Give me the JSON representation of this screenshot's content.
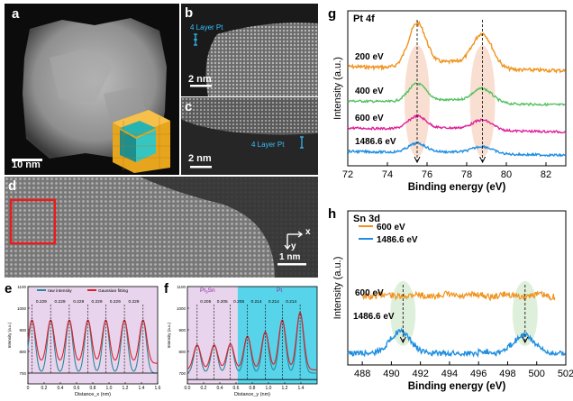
{
  "panels": {
    "a": {
      "label": "a",
      "scale": "10 nm"
    },
    "b": {
      "label": "b",
      "annotation": "4 Layer Pt",
      "scale": "2 nm"
    },
    "c": {
      "label": "c",
      "annotation": "4 Layer Pt",
      "scale": "2 nm"
    },
    "d": {
      "label": "d",
      "scale": "1 nm",
      "axis_x": "x",
      "axis_y": "y"
    },
    "e": {
      "label": "e"
    },
    "f": {
      "label": "f"
    },
    "g": {
      "label": "g"
    },
    "h": {
      "label": "h"
    }
  },
  "chart_data": [
    {
      "id": "e",
      "type": "line",
      "xlabel": "Distance_x (nm)",
      "ylabel": "Intensity (a.u.)",
      "xlim": [
        0,
        1.6
      ],
      "ylim": [
        650,
        1100
      ],
      "xticks": [
        "0",
        "0.2",
        "0.4",
        "0.6",
        "0.8",
        "1.0",
        "1.2",
        "1.4",
        "1.6"
      ],
      "yticks": [
        "700",
        "800",
        "900",
        "1000",
        "1100"
      ],
      "legend": [
        "raw intensity",
        "Gaussian fitting"
      ],
      "spacing_labels": [
        "0.229",
        "0.229",
        "0.229",
        "0.229",
        "0.229",
        "0.229"
      ],
      "peaks_x": [
        0.05,
        0.28,
        0.51,
        0.74,
        0.96,
        1.19,
        1.42
      ],
      "peak_y": 945,
      "baseline": 745
    },
    {
      "id": "f",
      "type": "line",
      "xlabel": "Distance_y (nm)",
      "ylabel": "Intensity (a.u.)",
      "xlim": [
        0,
        1.6
      ],
      "ylim": [
        650,
        1100
      ],
      "xticks": [
        "0.0",
        "0.2",
        "0.4",
        "0.6",
        "0.8",
        "1.0",
        "1.2",
        "1.4"
      ],
      "yticks": [
        "700",
        "800",
        "900",
        "1000",
        "1100"
      ],
      "region_labels": [
        "Pt",
        "3",
        "Sn",
        "Pt"
      ],
      "spacing_labels": [
        "0.205",
        "0.205",
        "0.205",
        "0.214",
        "0.214",
        "0.214"
      ],
      "peaks_x": [
        0.12,
        0.33,
        0.53,
        0.74,
        0.96,
        1.17,
        1.39
      ],
      "peaks_y": [
        830,
        830,
        835,
        870,
        890,
        945,
        980
      ],
      "baseline": 715
    },
    {
      "id": "g",
      "type": "line",
      "title": "Pt  4f",
      "xlabel": "Binding energy (eV)",
      "ylabel": "Intensity (a.u.)",
      "xlim": [
        72,
        83
      ],
      "xticks": [
        "72",
        "74",
        "76",
        "78",
        "80",
        "82"
      ],
      "peak_positions": [
        75.5,
        78.8
      ],
      "series": [
        {
          "name": "200 eV",
          "color": "#f0931e",
          "offset": 3,
          "amp": 1.25
        },
        {
          "name": "400 eV",
          "color": "#55c060",
          "offset": 2,
          "amp": 0.4
        },
        {
          "name": "600 eV",
          "color": "#e0229a",
          "offset": 1,
          "amp": 0.28
        },
        {
          "name": "1486.6 eV",
          "color": "#1e8ee0",
          "offset": 0,
          "amp": 0.12
        }
      ]
    },
    {
      "id": "h",
      "type": "line",
      "title": "Sn  3d",
      "xlabel": "Binding energy (eV)",
      "ylabel": "Intensity (a.u.)",
      "xlim": [
        487,
        502
      ],
      "xticks": [
        "488",
        "490",
        "492",
        "494",
        "496",
        "498",
        "500",
        "502"
      ],
      "peak_positions": [
        490.8,
        499.2
      ],
      "legend": [
        "600 eV",
        "1486.6 eV"
      ],
      "series": [
        {
          "name": "600 eV",
          "color": "#f0931e"
        },
        {
          "name": "1486.6 eV",
          "color": "#1e8ee0"
        }
      ]
    }
  ]
}
